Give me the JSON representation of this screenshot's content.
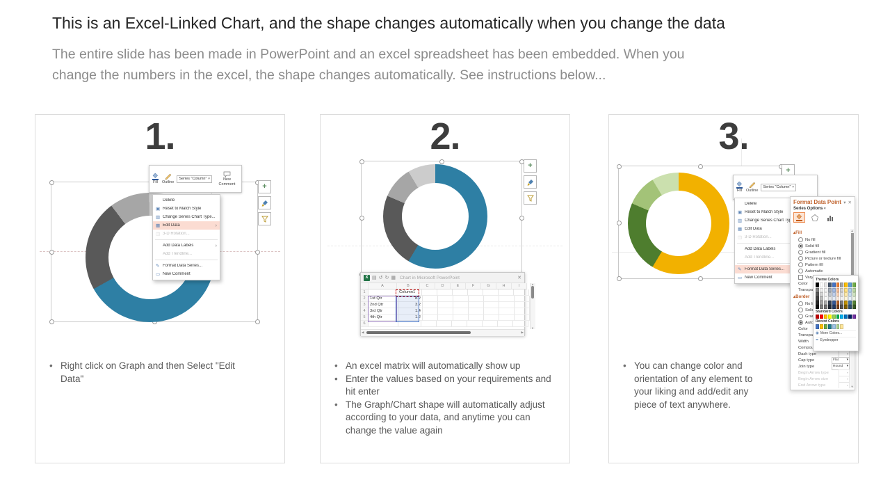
{
  "header": {
    "title": "This is an Excel-Linked Chart, and the shape changes automatically when you change the data",
    "subtitle": "The entire slide has been made in PowerPoint and an excel spreadsheet has been embedded. When you\nchange the numbers in the excel, the shape changes automatically. See instructions below..."
  },
  "steps": [
    {
      "number": "1.",
      "menu_highlight": "Edit Data",
      "bullets": [
        "Right click on Graph and then Select \"Edit Data\""
      ]
    },
    {
      "number": "2.",
      "menu_highlight": "",
      "bullets": [
        "An excel matrix will automatically show up",
        "Enter the values based on your requirements and hit enter",
        "The Graph/Chart shape will automatically adjust according to your data, and anytime you can change the value again"
      ]
    },
    {
      "number": "3.",
      "menu_highlight": "Format Data Series...",
      "bullets": [
        "You can change color and orientation of any element to your liking and add/edit any piece of text anywhere."
      ]
    }
  ],
  "chart_data": {
    "type": "donut",
    "series_name": "Column1",
    "categories": [
      "1st Qtr",
      "2nd Qtr",
      "3rd Qtr",
      "4th Qtr"
    ],
    "values": [
      8.2,
      3.2,
      1.4,
      1.2
    ],
    "palettes": {
      "step1": [
        "#2e7fa4",
        "#595959",
        "#a6a6a6",
        "#cccccc"
      ],
      "step2": [
        "#2e7fa4",
        "#595959",
        "#a6a6a6",
        "#cccccc"
      ],
      "step3": [
        "#f2b100",
        "#4e7d2e",
        "#a3c378",
        "#cbe0ae"
      ]
    },
    "start_angles": {
      "step1": 30,
      "step2": 0,
      "step3": 0
    },
    "hole_ratio": 0.64
  },
  "mini_toolbar": {
    "fill_label": "Fill",
    "outline_label": "Outline",
    "series_label": "Series \"Column\"",
    "new_comment_label": "New Comment"
  },
  "context_menu": {
    "items": [
      {
        "label": "Delete"
      },
      {
        "label": "Reset to Match Style",
        "icon": "reset-icon"
      },
      {
        "label": "Change Series Chart Type...",
        "icon": "chart-type-icon"
      },
      {
        "label": "Edit Data",
        "icon": "edit-data-icon",
        "submenu": true
      },
      {
        "label": "3-D Rotation...",
        "icon": "rotation-icon",
        "disabled": true
      },
      {
        "separator": true
      },
      {
        "label": "Add Data Labels",
        "submenu": true
      },
      {
        "label": "Add Trendline...",
        "disabled": true
      },
      {
        "separator": true
      },
      {
        "label": "Format Data Series...",
        "icon": "format-icon"
      },
      {
        "label": "New Comment",
        "icon": "comment-icon"
      }
    ]
  },
  "excel": {
    "title": "Chart in Microsoft PowerPoint",
    "close_glyph": "✕",
    "columns": [
      "A",
      "B",
      "C",
      "D",
      "E",
      "F",
      "G",
      "H",
      "I"
    ],
    "rows": [
      {
        "n": "1",
        "a": "",
        "b": "Column1"
      },
      {
        "n": "2",
        "a": "1st Qtr",
        "b": "8.2"
      },
      {
        "n": "3",
        "a": "2nd Qtr",
        "b": "3.2"
      },
      {
        "n": "4",
        "a": "3rd Qtr",
        "b": "1.4"
      },
      {
        "n": "5",
        "a": "4th Qtr",
        "b": "1.2"
      },
      {
        "n": "6",
        "a": "",
        "b": ""
      }
    ]
  },
  "format_panel": {
    "title": "Format Data Point",
    "series_options": "Series Options",
    "rows": [
      {
        "t": "head",
        "label": "Fill"
      },
      {
        "t": "radio",
        "label": "No fill"
      },
      {
        "t": "radio",
        "label": "Solid fill",
        "selected": true
      },
      {
        "t": "radio",
        "label": "Gradient fill"
      },
      {
        "t": "radio",
        "label": "Picture or texture fill"
      },
      {
        "t": "radio",
        "label": "Pattern fill"
      },
      {
        "t": "radio",
        "label": "Automatic"
      },
      {
        "t": "check",
        "label": "Vary colors by slice"
      },
      {
        "t": "color",
        "label": "Color",
        "hot": true
      },
      {
        "t": "prop",
        "label": "Transparency"
      },
      {
        "t": "head",
        "label": "Border"
      },
      {
        "t": "radio",
        "label": "No line"
      },
      {
        "t": "radio",
        "label": "Solid line"
      },
      {
        "t": "radio",
        "label": "Gradient line"
      },
      {
        "t": "radio",
        "label": "Automatic",
        "selected": true
      },
      {
        "t": "color",
        "label": "Color"
      },
      {
        "t": "prop",
        "label": "Transparency"
      },
      {
        "t": "prop",
        "label": "Width"
      },
      {
        "t": "prop",
        "label": "Compound type"
      },
      {
        "t": "prop",
        "label": "Dash type"
      },
      {
        "t": "select",
        "label": "Cap type",
        "value": "Flat"
      },
      {
        "t": "select",
        "label": "Join type",
        "value": "Round"
      },
      {
        "t": "prop",
        "label": "Begin Arrow type",
        "disabled": true
      },
      {
        "t": "prop",
        "label": "Begin Arrow size",
        "disabled": true
      },
      {
        "t": "prop",
        "label": "End Arrow type",
        "disabled": true
      }
    ],
    "color_picker": {
      "theme_label": "Theme Colors",
      "standard_label": "Standard Colors",
      "recent_label": "Recent Colors",
      "more_label": "More Colors...",
      "eyedropper_label": "Eyedropper",
      "theme_colors": [
        "#000000",
        "#FFFFFF",
        "#E7E6E6",
        "#44546A",
        "#4472C4",
        "#ED7D31",
        "#A5A5A5",
        "#FFC000",
        "#5B9BD5",
        "#70AD47"
      ],
      "standard_colors": [
        "#C00000",
        "#FF0000",
        "#FFC000",
        "#FFFF00",
        "#92D050",
        "#00B050",
        "#00B0F0",
        "#0070C0",
        "#002060",
        "#7030A0"
      ],
      "recent_colors": [
        "#4472C4",
        "#FFC000",
        "#70AD47",
        "#1F7A8C",
        "#9DC3E6",
        "#A9D18E",
        "#FFE699"
      ]
    }
  }
}
